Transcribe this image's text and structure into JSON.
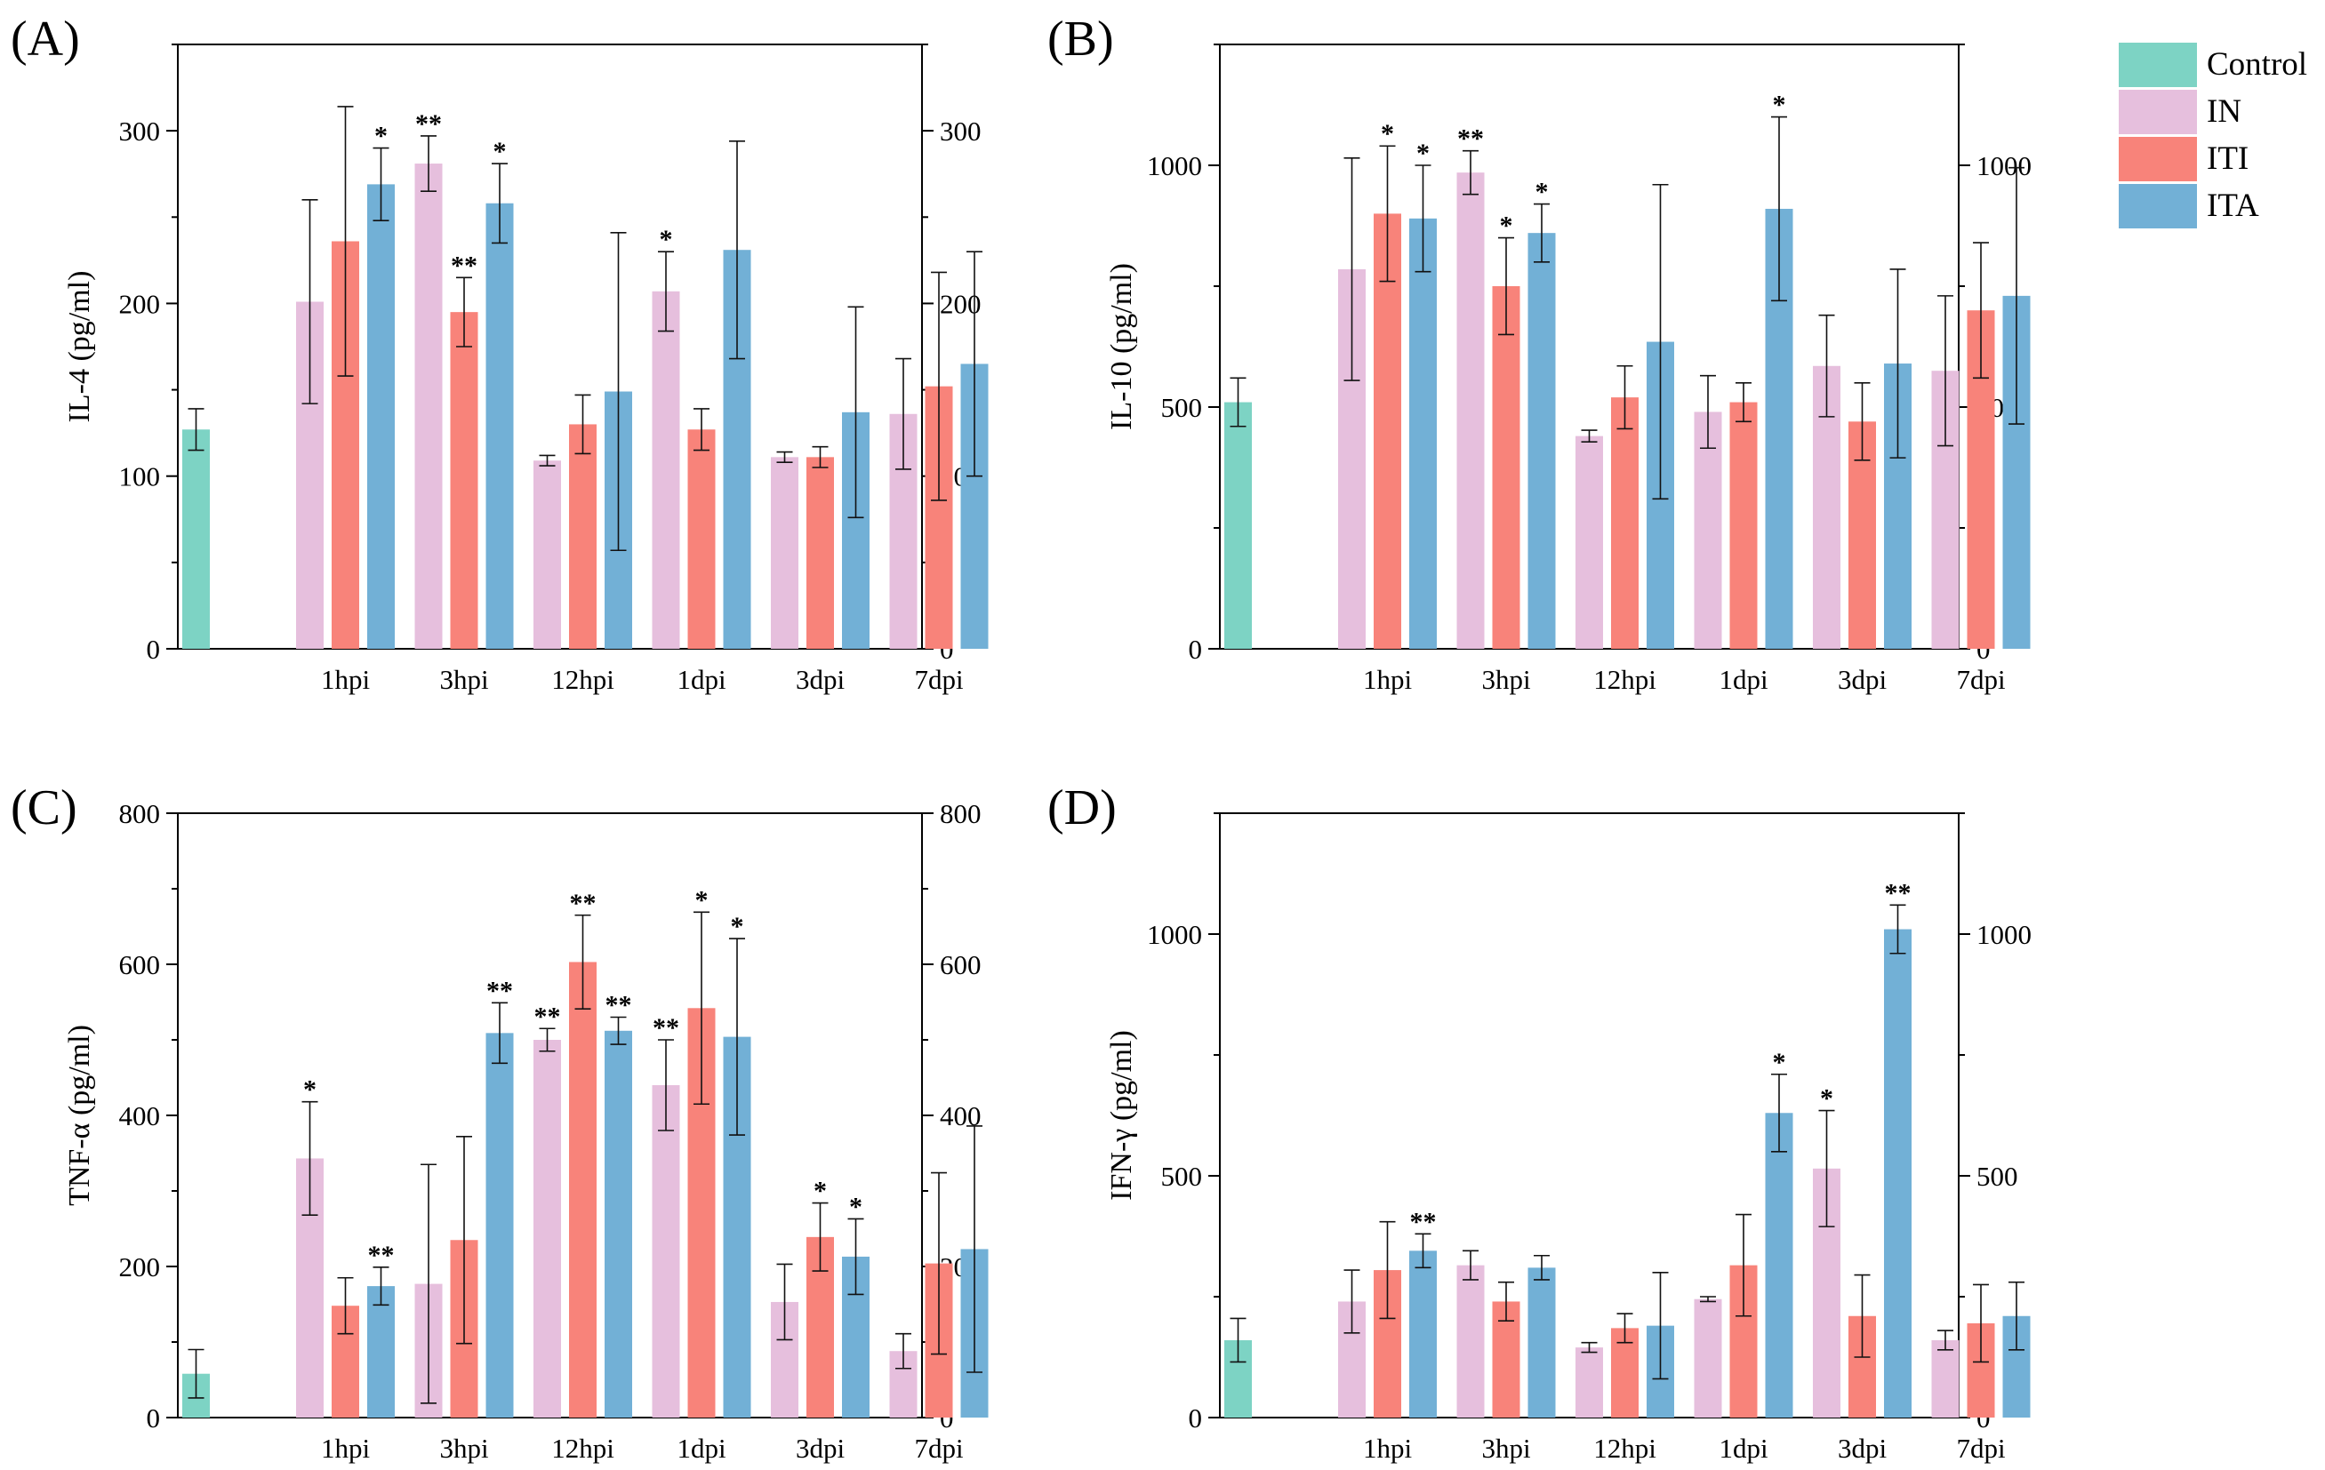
{
  "legend": {
    "items": [
      {
        "name": "Control",
        "color": "#7dd3c4"
      },
      {
        "name": "IN",
        "color": "#e6bfdd"
      },
      {
        "name": "ITI",
        "color": "#f8837a"
      },
      {
        "name": "ITA",
        "color": "#72b0d6"
      }
    ]
  },
  "chart_data": [
    {
      "type": "bar",
      "panel": "(A)",
      "ylabel": "IL-4 (pg/ml)",
      "ylim": [
        0,
        350
      ],
      "yticks": [
        0,
        100,
        200,
        300
      ],
      "categories": [
        "1hpi",
        "3hpi",
        "12hpi",
        "1dpi",
        "3dpi",
        "7dpi"
      ],
      "control": {
        "name": "Control",
        "value": 127,
        "err": 12
      },
      "series": [
        {
          "name": "IN",
          "values": [
            201,
            281,
            109,
            207,
            111,
            136
          ],
          "errors": [
            59,
            16,
            3,
            23,
            3,
            32
          ],
          "stars": [
            "",
            "**",
            "",
            "*",
            "",
            ""
          ]
        },
        {
          "name": "ITI",
          "values": [
            236,
            195,
            130,
            127,
            111,
            152
          ],
          "errors": [
            78,
            20,
            17,
            12,
            6,
            66
          ],
          "stars": [
            "",
            "**",
            "",
            "",
            "",
            ""
          ]
        },
        {
          "name": "ITA",
          "values": [
            269,
            258,
            149,
            231,
            137,
            165
          ],
          "errors": [
            21,
            23,
            92,
            63,
            61,
            65
          ],
          "stars": [
            "*",
            "*",
            "",
            "",
            "",
            ""
          ]
        }
      ]
    },
    {
      "type": "bar",
      "panel": "(B)",
      "ylabel": "IL-10 (pg/ml)",
      "ylim": [
        0,
        1250
      ],
      "yticks": [
        0,
        500,
        1000
      ],
      "categories": [
        "1hpi",
        "3hpi",
        "12hpi",
        "1dpi",
        "3dpi",
        "7dpi"
      ],
      "control": {
        "name": "Control",
        "value": 510,
        "err": 50
      },
      "series": [
        {
          "name": "IN",
          "values": [
            785,
            985,
            440,
            490,
            585,
            575
          ],
          "errors": [
            230,
            45,
            12,
            75,
            105,
            155
          ],
          "stars": [
            "",
            "**",
            "",
            "",
            "",
            ""
          ]
        },
        {
          "name": "ITI",
          "values": [
            900,
            750,
            520,
            510,
            470,
            700
          ],
          "errors": [
            140,
            100,
            65,
            40,
            80,
            140
          ],
          "stars": [
            "*",
            "*",
            "",
            "",
            "",
            ""
          ]
        },
        {
          "name": "ITA",
          "values": [
            890,
            860,
            635,
            910,
            590,
            730
          ],
          "errors": [
            110,
            60,
            325,
            190,
            195,
            265
          ],
          "stars": [
            "*",
            "*",
            "",
            "*",
            "",
            ""
          ]
        }
      ]
    },
    {
      "type": "bar",
      "panel": "(C)",
      "ylabel": "TNF-α (pg/ml)",
      "ylim": [
        0,
        800
      ],
      "yticks": [
        0,
        200,
        400,
        600,
        800
      ],
      "categories": [
        "1hpi",
        "3hpi",
        "12hpi",
        "1dpi",
        "3dpi",
        "7dpi"
      ],
      "control": {
        "name": "Control",
        "value": 58,
        "err": 32
      },
      "series": [
        {
          "name": "IN",
          "values": [
            343,
            177,
            500,
            440,
            153,
            88
          ],
          "errors": [
            75,
            158,
            15,
            60,
            50,
            23
          ],
          "stars": [
            "*",
            "",
            "**",
            "**",
            "",
            ""
          ]
        },
        {
          "name": "ITI",
          "values": [
            148,
            235,
            603,
            542,
            239,
            204
          ],
          "errors": [
            37,
            137,
            62,
            127,
            45,
            120
          ],
          "stars": [
            "",
            "",
            "**",
            "*",
            "*",
            ""
          ]
        },
        {
          "name": "ITA",
          "values": [
            174,
            509,
            512,
            504,
            213,
            223
          ],
          "errors": [
            25,
            40,
            18,
            130,
            50,
            163
          ],
          "stars": [
            "**",
            "**",
            "**",
            "*",
            "*",
            ""
          ]
        }
      ]
    },
    {
      "type": "bar",
      "panel": "(D)",
      "ylabel": "IFN-γ (pg/ml)",
      "ylim": [
        0,
        1250
      ],
      "yticks": [
        0,
        500,
        1000
      ],
      "categories": [
        "1hpi",
        "3hpi",
        "12hpi",
        "1dpi",
        "3dpi",
        "7dpi"
      ],
      "control": {
        "name": "Control",
        "value": 160,
        "err": 45
      },
      "series": [
        {
          "name": "IN",
          "values": [
            240,
            315,
            145,
            245,
            515,
            160
          ],
          "errors": [
            65,
            30,
            10,
            5,
            120,
            20
          ],
          "stars": [
            "",
            "",
            "",
            "",
            "*",
            ""
          ]
        },
        {
          "name": "ITI",
          "values": [
            305,
            240,
            185,
            315,
            210,
            195
          ],
          "errors": [
            100,
            40,
            30,
            105,
            85,
            80
          ],
          "stars": [
            "",
            "",
            "",
            "",
            "",
            ""
          ]
        },
        {
          "name": "ITA",
          "values": [
            345,
            310,
            190,
            630,
            1010,
            210
          ],
          "errors": [
            35,
            25,
            110,
            80,
            50,
            70
          ],
          "stars": [
            "**",
            "",
            "",
            "*",
            "**",
            ""
          ]
        }
      ]
    }
  ]
}
